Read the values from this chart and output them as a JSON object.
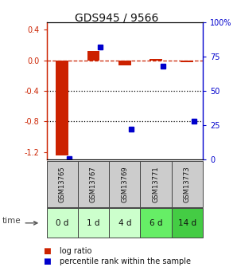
{
  "title": "GDS945 / 9566",
  "samples": [
    "GSM13765",
    "GSM13767",
    "GSM13769",
    "GSM13771",
    "GSM13773"
  ],
  "time_labels": [
    "0 d",
    "1 d",
    "4 d",
    "6 d",
    "14 d"
  ],
  "log_ratio": [
    -1.25,
    0.12,
    -0.07,
    0.02,
    -0.03
  ],
  "percentile": [
    0.5,
    82,
    22,
    68,
    28
  ],
  "ylim_left": [
    -1.3,
    0.5
  ],
  "ylim_right": [
    0,
    100
  ],
  "yticks_left": [
    0.4,
    0.0,
    -0.4,
    -0.8,
    -1.2
  ],
  "yticks_right": [
    100,
    75,
    50,
    25,
    0
  ],
  "bar_color": "#cc2200",
  "dot_color": "#0000cc",
  "dashed_line_color": "#cc2200",
  "dotted_line_color": "#000000",
  "bg_color": "#ffffff",
  "plot_bg": "#ffffff",
  "cell_bg_gsm": "#cccccc",
  "time_bg_colors": [
    "#ccffcc",
    "#ccffcc",
    "#ccffcc",
    "#66ee66",
    "#44cc44"
  ],
  "title_color": "#111111",
  "legend_items": [
    "log ratio",
    "percentile rank within the sample"
  ]
}
